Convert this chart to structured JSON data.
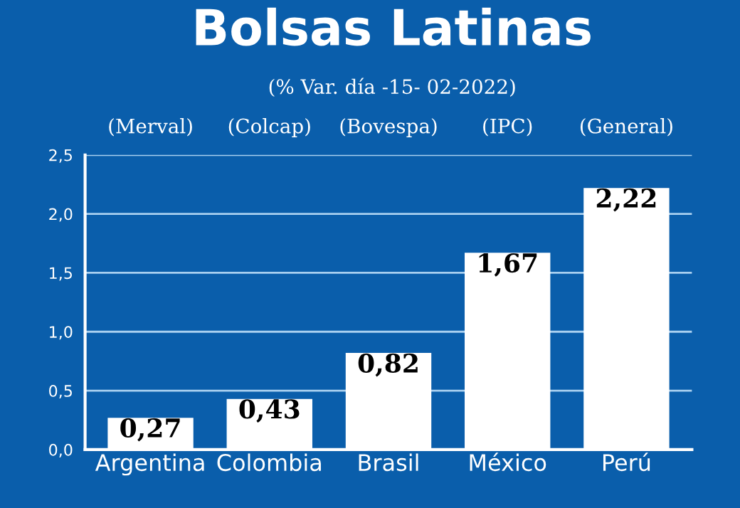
{
  "chart_data": {
    "type": "bar",
    "title": "Bolsas Latinas",
    "subtitle": "(% Var. día -15- 02-2022)",
    "categories": [
      "Argentina",
      "Colombia",
      "Brasil",
      "México",
      "Perú"
    ],
    "values": [
      0.27,
      0.43,
      0.82,
      1.67,
      2.22
    ],
    "color": "#ffffff",
    "annotations": [
      "(Merval)",
      "(Colcap)",
      "(Bovespa)",
      "(IPC)",
      "(General)"
    ],
    "ylim": [
      0,
      2.5
    ],
    "yticks": [
      {
        "value": 0,
        "label": "0,0"
      },
      {
        "value": 0.5,
        "label": "0,5"
      },
      {
        "value": 1.0,
        "label": "1,0"
      },
      {
        "value": 1.5,
        "label": "1,5"
      },
      {
        "value": 2.0,
        "label": "2,0"
      },
      {
        "value": 2.5,
        "label": "2,5"
      }
    ],
    "grid": "y",
    "value_labels": [
      "0,27",
      "0,43",
      "0,82",
      "1,67",
      "2,22"
    ]
  }
}
